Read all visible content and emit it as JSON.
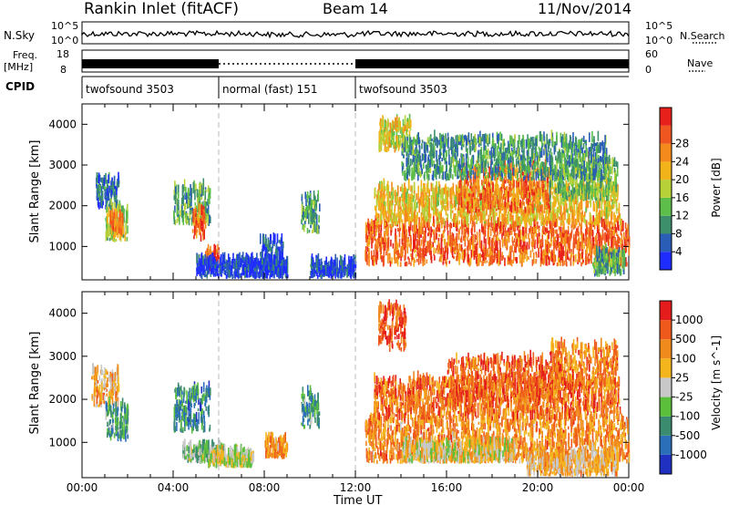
{
  "header": {
    "station": "Rankin Inlet (fitACF)",
    "beam": "Beam 14",
    "date": "11/Nov/2014"
  },
  "aux_panels": {
    "nsky_label": "N.Sky",
    "nsky_ticks": [
      "10^5",
      "10^0"
    ],
    "nsearch_label": "N.Search",
    "freq_label_line1": "Freq.",
    "freq_label_line2": "[MHz]",
    "freq_ticks": [
      "18",
      "8"
    ],
    "nave_label": "Nave",
    "nave_ticks": [
      "60",
      "0"
    ],
    "cpid_label": "CPID",
    "cpid_segments": [
      {
        "label": "twofsound 3503",
        "start_hour": 0,
        "end_hour": 6
      },
      {
        "label": "normal (fast) 151",
        "start_hour": 6,
        "end_hour": 12
      },
      {
        "label": "twofsound 3503",
        "start_hour": 12,
        "end_hour": 24
      }
    ]
  },
  "chart_data": [
    {
      "type": "heatmap",
      "panel": "power",
      "xlabel": "",
      "ylabel": "Slant Range [km]",
      "xlim": [
        0,
        24
      ],
      "ylim": [
        180,
        4500
      ],
      "yticks": [
        1000,
        2000,
        3000,
        4000
      ],
      "colorbar": {
        "label": "Power [dB]",
        "ticks": [
          "4",
          "8",
          "12",
          "16",
          "20",
          "24",
          "28"
        ],
        "colors": [
          "#1f2cff",
          "#2a5db6",
          "#3c8f6a",
          "#5dbf49",
          "#b6d238",
          "#f2b21a",
          "#f58a1c",
          "#f0561f",
          "#e8201b"
        ]
      },
      "regions": [
        {
          "t0": 0.6,
          "t1": 1.6,
          "r0": 1900,
          "r1": 2600,
          "level": 0.2
        },
        {
          "t0": 1.0,
          "t1": 2.0,
          "r0": 1100,
          "r1": 1900,
          "level": 0.45
        },
        {
          "t0": 1.2,
          "t1": 1.8,
          "r0": 1200,
          "r1": 1700,
          "level": 0.75
        },
        {
          "t0": 4.0,
          "t1": 5.6,
          "r0": 1500,
          "r1": 2400,
          "level": 0.35
        },
        {
          "t0": 4.8,
          "t1": 5.4,
          "r0": 1100,
          "r1": 1800,
          "level": 0.8
        },
        {
          "t0": 5.4,
          "t1": 6.0,
          "r0": 350,
          "r1": 800,
          "level": 0.9
        },
        {
          "t0": 5.0,
          "t1": 9.0,
          "r0": 200,
          "r1": 600,
          "level": 0.08
        },
        {
          "t0": 9.6,
          "t1": 10.4,
          "r0": 1300,
          "r1": 2200,
          "level": 0.3
        },
        {
          "t0": 7.8,
          "t1": 8.8,
          "r0": 500,
          "r1": 1100,
          "level": 0.15
        },
        {
          "t0": 10.0,
          "t1": 12.0,
          "r0": 200,
          "r1": 550,
          "level": 0.12
        },
        {
          "t0": 13.0,
          "t1": 14.4,
          "r0": 3300,
          "r1": 4000,
          "level": 0.55
        },
        {
          "t0": 12.4,
          "t1": 24.0,
          "r0": 500,
          "r1": 1500,
          "level": 0.8
        },
        {
          "t0": 12.8,
          "t1": 23.6,
          "r0": 1500,
          "r1": 2400,
          "level": 0.6
        },
        {
          "t0": 16.5,
          "t1": 20.5,
          "r0": 1800,
          "r1": 2900,
          "level": 0.78
        },
        {
          "t0": 20.5,
          "t1": 23.5,
          "r0": 2100,
          "r1": 3100,
          "level": 0.4
        },
        {
          "t0": 14.0,
          "t1": 23.0,
          "r0": 2600,
          "r1": 3600,
          "level": 0.3
        },
        {
          "t0": 22.4,
          "t1": 23.8,
          "r0": 250,
          "r1": 800,
          "level": 0.35
        }
      ]
    },
    {
      "type": "heatmap",
      "panel": "velocity",
      "xlabel": "Time UT",
      "ylabel": "Slant Range [km]",
      "xlim": [
        0,
        24
      ],
      "ylim": [
        180,
        4500
      ],
      "yticks": [
        1000,
        2000,
        3000,
        4000
      ],
      "xticks": [
        "00:00",
        "04:00",
        "08:00",
        "12:00",
        "16:00",
        "20:00",
        "00:00"
      ],
      "colorbar": {
        "label": "Velocity [m s^-1]",
        "ticks": [
          "1000",
          "500",
          "100",
          "25",
          "-25",
          "-100",
          "-500",
          "-1000"
        ],
        "colors": [
          "#2030c0",
          "#2b6fb8",
          "#3b8c6f",
          "#5bbf3c",
          "#c8c8c8",
          "#f4b41c",
          "#f08a1c",
          "#ef5a1c",
          "#e41c1c"
        ]
      },
      "regions": [
        {
          "t0": 0.4,
          "t1": 1.6,
          "r0": 1800,
          "r1": 2600,
          "level": 0.65
        },
        {
          "t0": 1.0,
          "t1": 2.0,
          "r0": 1000,
          "r1": 1800,
          "level": 0.3
        },
        {
          "t0": 4.0,
          "t1": 5.6,
          "r0": 1200,
          "r1": 2200,
          "level": 0.25
        },
        {
          "t0": 4.4,
          "t1": 6.2,
          "r0": 500,
          "r1": 850,
          "level": 0.4
        },
        {
          "t0": 5.5,
          "t1": 7.5,
          "r0": 400,
          "r1": 700,
          "level": 0.5
        },
        {
          "t0": 9.6,
          "t1": 10.4,
          "r0": 1300,
          "r1": 2100,
          "level": 0.3
        },
        {
          "t0": 8.0,
          "t1": 9.0,
          "r0": 600,
          "r1": 1000,
          "level": 0.7
        },
        {
          "t0": 13.0,
          "t1": 14.2,
          "r0": 3100,
          "r1": 4100,
          "level": 0.85
        },
        {
          "t0": 12.4,
          "t1": 24.0,
          "r0": 500,
          "r1": 1500,
          "level": 0.72
        },
        {
          "t0": 14.0,
          "t1": 19.0,
          "r0": 500,
          "r1": 900,
          "level": 0.55
        },
        {
          "t0": 12.8,
          "t1": 23.6,
          "r0": 1500,
          "r1": 2400,
          "level": 0.78
        },
        {
          "t0": 16.0,
          "t1": 21.0,
          "r0": 1900,
          "r1": 2900,
          "level": 0.82
        },
        {
          "t0": 20.5,
          "t1": 23.5,
          "r0": 2200,
          "r1": 3200,
          "level": 0.75
        },
        {
          "t0": 19.5,
          "t1": 23.5,
          "r0": 200,
          "r1": 650,
          "level": 0.62
        }
      ]
    }
  ]
}
